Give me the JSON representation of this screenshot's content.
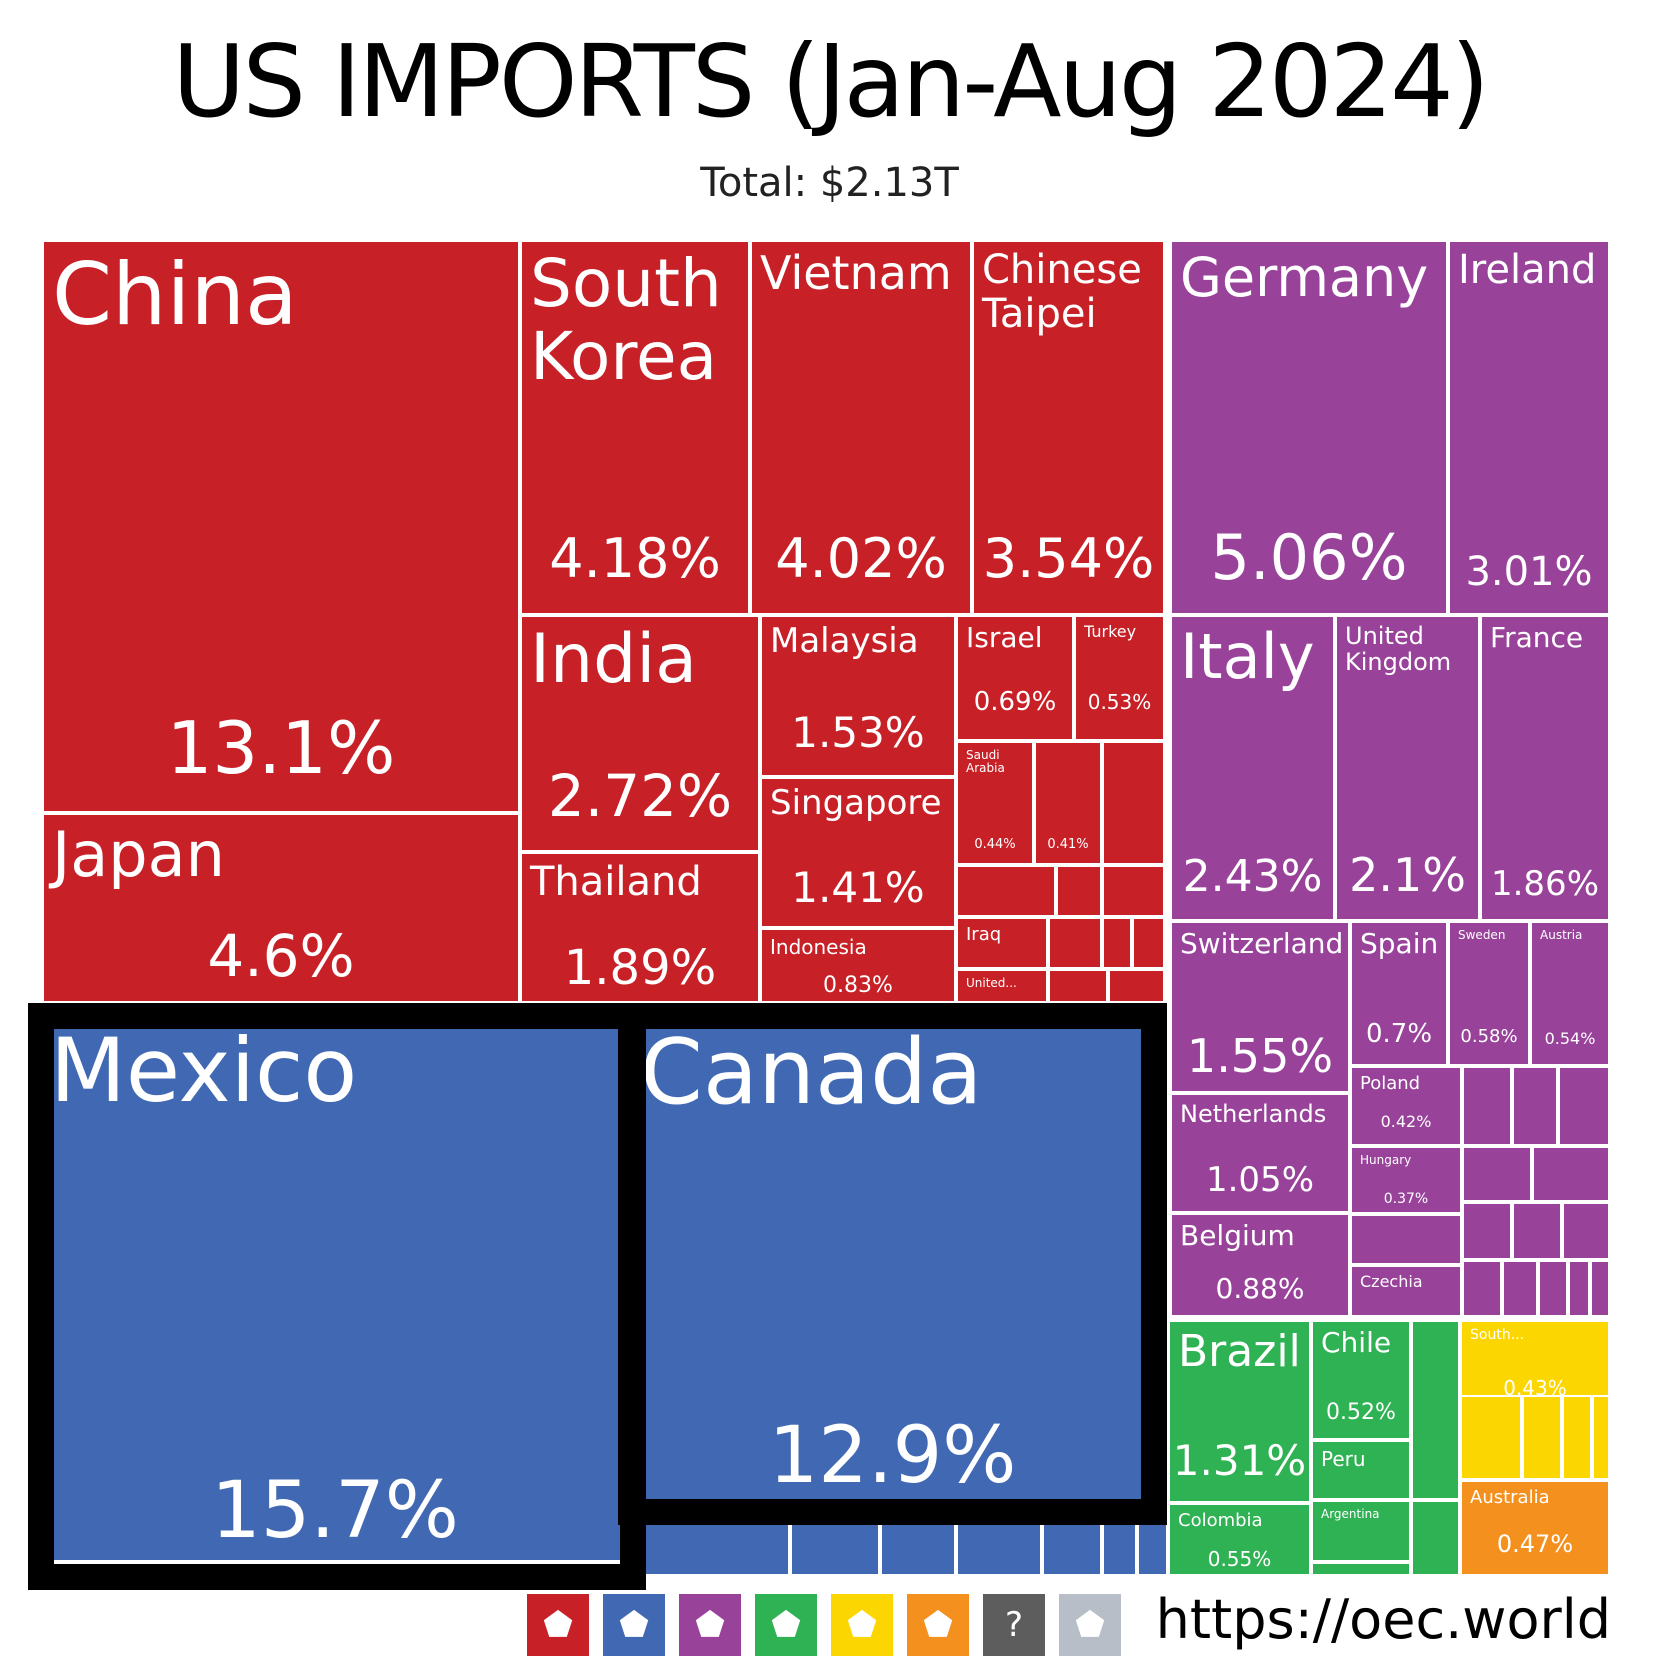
{
  "title": "US IMPORTS (Jan-Aug 2024)",
  "subtitle": "Total: $2.13T",
  "footer_url": "https://oec.world",
  "colors": {
    "asia": "#c72027",
    "europe": "#98429a",
    "north_america": "#4169b3",
    "south_america": "#2fb253",
    "africa": "#fbd600",
    "oceania": "#f4901e",
    "unknown": "#5d5d5d",
    "antarctica": "#b7bec7",
    "highlight_border": "#000000"
  },
  "region_icons": [
    {
      "name": "asia-icon",
      "color": "#c72027",
      "glyph": "⬟"
    },
    {
      "name": "north-america-icon",
      "color": "#4169b3",
      "glyph": "⬟"
    },
    {
      "name": "europe-icon",
      "color": "#98429a",
      "glyph": "⬟"
    },
    {
      "name": "south-america-icon",
      "color": "#2fb253",
      "glyph": "⬟"
    },
    {
      "name": "africa-icon",
      "color": "#fbd600",
      "glyph": "⬟"
    },
    {
      "name": "oceania-icon",
      "color": "#f4901e",
      "glyph": "⬟"
    },
    {
      "name": "unknown-region-icon",
      "color": "#5d5d5d",
      "glyph": "?"
    },
    {
      "name": "antarctica-icon",
      "color": "#b7bec7",
      "glyph": "⬟"
    }
  ],
  "chart_data": {
    "type": "treemap",
    "title": "US IMPORTS (Jan-Aug 2024)",
    "subtitle": "Total: $2.13T",
    "unit": "% of total imports",
    "highlighted": [
      "Mexico",
      "Canada"
    ],
    "items": [
      {
        "name": "China",
        "value": 13.1,
        "label": "13.1%",
        "region": "asia"
      },
      {
        "name": "Japan",
        "value": 4.6,
        "label": "4.6%",
        "region": "asia"
      },
      {
        "name": "South Korea",
        "value": 4.18,
        "label": "4.18%",
        "region": "asia"
      },
      {
        "name": "Vietnam",
        "value": 4.02,
        "label": "4.02%",
        "region": "asia"
      },
      {
        "name": "Chinese Taipei",
        "value": 3.54,
        "label": "3.54%",
        "region": "asia"
      },
      {
        "name": "India",
        "value": 2.72,
        "label": "2.72%",
        "region": "asia"
      },
      {
        "name": "Thailand",
        "value": 1.89,
        "label": "1.89%",
        "region": "asia"
      },
      {
        "name": "Malaysia",
        "value": 1.53,
        "label": "1.53%",
        "region": "asia"
      },
      {
        "name": "Singapore",
        "value": 1.41,
        "label": "1.41%",
        "region": "asia"
      },
      {
        "name": "Indonesia",
        "value": 0.83,
        "label": "0.83%",
        "region": "asia"
      },
      {
        "name": "Israel",
        "value": 0.69,
        "label": "0.69%",
        "region": "asia"
      },
      {
        "name": "Turkey",
        "value": 0.53,
        "label": "0.53%",
        "region": "asia"
      },
      {
        "name": "Saudi Arabia",
        "value": 0.44,
        "label": "0.44%",
        "region": "asia"
      },
      {
        "name": "",
        "value": 0.41,
        "label": "0.41%",
        "region": "asia"
      },
      {
        "name": "Iraq",
        "value": null,
        "label": "",
        "region": "asia"
      },
      {
        "name": "United...",
        "value": null,
        "label": "",
        "region": "asia"
      },
      {
        "name": "Germany",
        "value": 5.06,
        "label": "5.06%",
        "region": "europe"
      },
      {
        "name": "Ireland",
        "value": 3.01,
        "label": "3.01%",
        "region": "europe"
      },
      {
        "name": "Italy",
        "value": 2.43,
        "label": "2.43%",
        "region": "europe"
      },
      {
        "name": "United Kingdom",
        "value": 2.1,
        "label": "2.1%",
        "region": "europe"
      },
      {
        "name": "France",
        "value": 1.86,
        "label": "1.86%",
        "region": "europe"
      },
      {
        "name": "Switzerland",
        "value": 1.55,
        "label": "1.55%",
        "region": "europe"
      },
      {
        "name": "Spain",
        "value": 0.7,
        "label": "0.7%",
        "region": "europe"
      },
      {
        "name": "Sweden",
        "value": 0.58,
        "label": "0.58%",
        "region": "europe"
      },
      {
        "name": "Austria",
        "value": 0.54,
        "label": "0.54%",
        "region": "europe"
      },
      {
        "name": "Netherlands",
        "value": 1.05,
        "label": "1.05%",
        "region": "europe"
      },
      {
        "name": "Poland",
        "value": 0.42,
        "label": "0.42%",
        "region": "europe"
      },
      {
        "name": "Hungary",
        "value": 0.37,
        "label": "0.37%",
        "region": "europe"
      },
      {
        "name": "Belgium",
        "value": 0.88,
        "label": "0.88%",
        "region": "europe"
      },
      {
        "name": "Czechia",
        "value": null,
        "label": "",
        "region": "europe"
      },
      {
        "name": "Mexico",
        "value": 15.7,
        "label": "15.7%",
        "region": "north_america"
      },
      {
        "name": "Canada",
        "value": 12.9,
        "label": "12.9%",
        "region": "north_america"
      },
      {
        "name": "Brazil",
        "value": 1.31,
        "label": "1.31%",
        "region": "south_america"
      },
      {
        "name": "Chile",
        "value": 0.52,
        "label": "0.52%",
        "region": "south_america"
      },
      {
        "name": "Peru",
        "value": null,
        "label": "",
        "region": "south_america"
      },
      {
        "name": "Argentina",
        "value": null,
        "label": "",
        "region": "south_america"
      },
      {
        "name": "Colombia",
        "value": 0.55,
        "label": "0.55%",
        "region": "south_america"
      },
      {
        "name": "South...",
        "value": 0.43,
        "label": "0.43%",
        "region": "africa"
      },
      {
        "name": "Australia",
        "value": 0.47,
        "label": "0.47%",
        "region": "oceania"
      }
    ]
  }
}
